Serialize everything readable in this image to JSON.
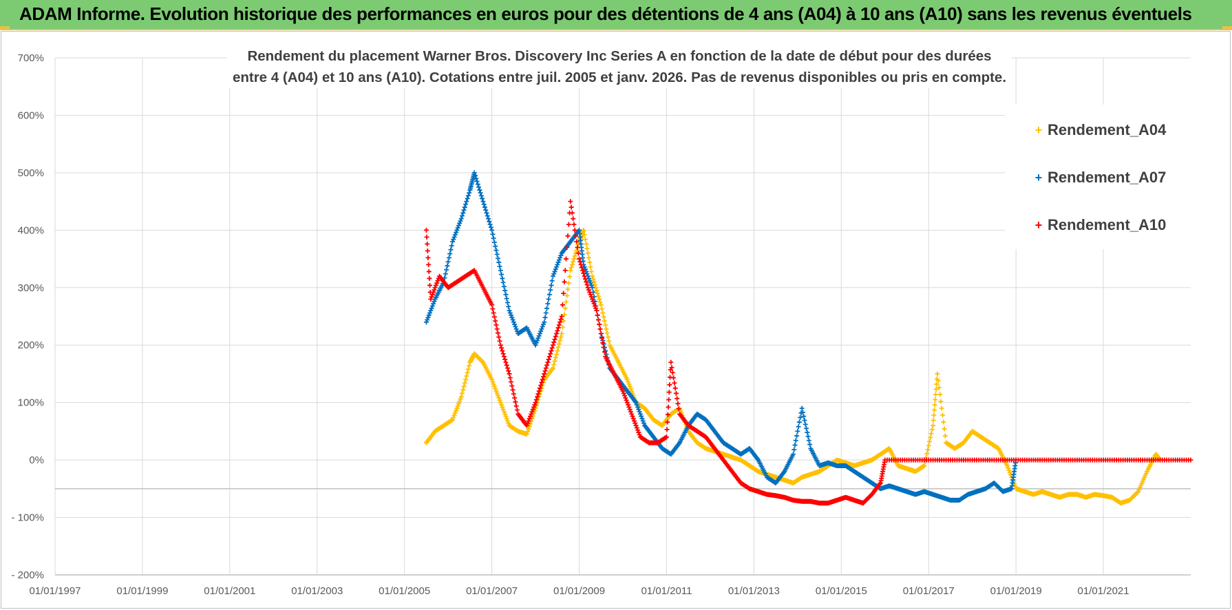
{
  "header": {
    "title": "ADAM Informe. Evolution historique des performances en euros pour des détentions de 4 ans (A04) à 10 ans (A10) sans les revenus éventuels"
  },
  "chart_data": {
    "type": "scatter",
    "title_line1": "Rendement du placement Warner Bros. Discovery Inc Series A en fonction de la date de début pour des durées",
    "title_line2": "entre 4 (A04) et 10 ans (A10). Cotations entre juil. 2005 et janv. 2026. Pas de revenus disponibles ou pris en compte.",
    "xlabel": "",
    "ylabel": "",
    "xlim": [
      1997.0,
      2023.0
    ],
    "ylim": [
      -200,
      700
    ],
    "y_ticks": [
      -200,
      -100,
      0,
      100,
      200,
      300,
      400,
      500,
      600,
      700
    ],
    "y_tick_labels": [
      "- 200%",
      "- 100%",
      "0%",
      "100%",
      "200%",
      "300%",
      "400%",
      "500%",
      "600%",
      "700%"
    ],
    "x_ticks": [
      1997,
      1999,
      2001,
      2003,
      2005,
      2007,
      2009,
      2011,
      2013,
      2015,
      2017,
      2019,
      2021
    ],
    "x_tick_labels": [
      "01/01/1997",
      "01/01/1999",
      "01/01/2001",
      "01/01/2003",
      "01/01/2005",
      "01/01/2007",
      "01/01/2009",
      "01/01/2011",
      "01/01/2013",
      "01/01/2015",
      "01/01/2017",
      "01/01/2019",
      "01/01/2021"
    ],
    "marker": "+",
    "legend_position": "right",
    "series": [
      {
        "name": "Rendement_A04",
        "color": "#ffc000",
        "x": [
          2005.5,
          2005.7,
          2005.9,
          2006.1,
          2006.3,
          2006.5,
          2006.6,
          2006.8,
          2007.0,
          2007.2,
          2007.4,
          2007.6,
          2007.8,
          2008.0,
          2008.2,
          2008.4,
          2008.6,
          2008.8,
          2009.0,
          2009.1,
          2009.3,
          2009.5,
          2009.7,
          2009.9,
          2010.1,
          2010.3,
          2010.5,
          2010.7,
          2010.9,
          2011.1,
          2011.3,
          2011.5,
          2011.7,
          2011.9,
          2012.1,
          2012.3,
          2012.5,
          2012.7,
          2012.9,
          2013.1,
          2013.3,
          2013.5,
          2013.7,
          2013.9,
          2014.1,
          2014.3,
          2014.5,
          2014.7,
          2014.9,
          2015.1,
          2015.3,
          2015.5,
          2015.7,
          2015.9,
          2016.1,
          2016.3,
          2016.5,
          2016.7,
          2016.9,
          2017.1,
          2017.2,
          2017.4,
          2017.6,
          2017.8,
          2018.0,
          2018.2,
          2018.4,
          2018.6,
          2018.8,
          2019.0,
          2019.2,
          2019.4,
          2019.6,
          2019.8,
          2020.0,
          2020.2,
          2020.4,
          2020.6,
          2020.8,
          2021.0,
          2021.2,
          2021.4,
          2021.6,
          2021.8,
          2022.0,
          2022.2,
          2022.3
        ],
        "y": [
          30,
          50,
          60,
          70,
          110,
          170,
          185,
          170,
          140,
          100,
          60,
          50,
          45,
          90,
          140,
          160,
          220,
          330,
          380,
          400,
          320,
          270,
          200,
          170,
          140,
          100,
          90,
          70,
          60,
          80,
          90,
          50,
          30,
          20,
          15,
          10,
          5,
          0,
          -10,
          -20,
          -25,
          -30,
          -35,
          -40,
          -30,
          -25,
          -20,
          -10,
          0,
          -5,
          -10,
          -5,
          0,
          10,
          20,
          -10,
          -15,
          -20,
          -10,
          60,
          150,
          30,
          20,
          30,
          50,
          40,
          30,
          20,
          -10,
          -50,
          -55,
          -60,
          -55,
          -60,
          -65,
          -60,
          -60,
          -65,
          -60,
          -62,
          -65,
          -75,
          -70,
          -55,
          -20,
          10,
          0
        ]
      },
      {
        "name": "Rendement_A07",
        "color": "#0070c0",
        "x": [
          2005.5,
          2005.7,
          2005.9,
          2006.1,
          2006.3,
          2006.5,
          2006.6,
          2006.8,
          2007.0,
          2007.2,
          2007.4,
          2007.6,
          2007.8,
          2008.0,
          2008.2,
          2008.4,
          2008.6,
          2008.8,
          2009.0,
          2009.1,
          2009.3,
          2009.5,
          2009.7,
          2009.9,
          2010.1,
          2010.3,
          2010.5,
          2010.7,
          2010.9,
          2011.1,
          2011.3,
          2011.5,
          2011.7,
          2011.9,
          2012.1,
          2012.3,
          2012.5,
          2012.7,
          2012.9,
          2013.1,
          2013.3,
          2013.5,
          2013.7,
          2013.9,
          2014.1,
          2014.3,
          2014.5,
          2014.7,
          2014.9,
          2015.1,
          2015.3,
          2015.5,
          2015.7,
          2015.9,
          2016.1,
          2016.3,
          2016.5,
          2016.7,
          2016.9,
          2017.1,
          2017.3,
          2017.5,
          2017.7,
          2017.9,
          2018.1,
          2018.3,
          2018.5,
          2018.7,
          2018.9,
          2019.0
        ],
        "y": [
          240,
          280,
          310,
          380,
          420,
          470,
          500,
          450,
          400,
          330,
          260,
          220,
          230,
          200,
          240,
          320,
          360,
          380,
          400,
          340,
          300,
          220,
          160,
          140,
          120,
          100,
          60,
          40,
          20,
          10,
          30,
          60,
          80,
          70,
          50,
          30,
          20,
          10,
          20,
          0,
          -30,
          -40,
          -20,
          10,
          90,
          20,
          -10,
          -5,
          -10,
          -10,
          -20,
          -30,
          -40,
          -50,
          -45,
          -50,
          -55,
          -60,
          -55,
          -60,
          -65,
          -70,
          -70,
          -60,
          -55,
          -50,
          -40,
          -55,
          -50,
          0
        ]
      },
      {
        "name": "Rendement_A10",
        "color": "#ff0000",
        "x": [
          2005.5,
          2005.6,
          2005.8,
          2006.0,
          2006.2,
          2006.4,
          2006.6,
          2006.8,
          2007.0,
          2007.2,
          2007.4,
          2007.6,
          2007.8,
          2008.0,
          2008.2,
          2008.4,
          2008.6,
          2008.8,
          2009.0,
          2009.2,
          2009.4,
          2009.6,
          2009.8,
          2010.0,
          2010.2,
          2010.4,
          2010.6,
          2010.8,
          2011.0,
          2011.1,
          2011.3,
          2011.5,
          2011.7,
          2011.9,
          2012.1,
          2012.3,
          2012.5,
          2012.7,
          2012.9,
          2013.1,
          2013.3,
          2013.5,
          2013.7,
          2013.9,
          2014.1,
          2014.3,
          2014.5,
          2014.7,
          2014.9,
          2015.1,
          2015.3,
          2015.5,
          2015.7,
          2015.9,
          2016.0,
          2016.5,
          2017.0,
          2017.5,
          2018.0,
          2018.5,
          2019.0,
          2019.5,
          2020.0,
          2020.5,
          2021.0,
          2021.5,
          2022.0,
          2022.5,
          2023.0
        ],
        "y": [
          400,
          280,
          320,
          300,
          310,
          320,
          330,
          300,
          270,
          200,
          150,
          80,
          60,
          100,
          150,
          200,
          250,
          450,
          350,
          300,
          260,
          180,
          150,
          120,
          80,
          40,
          30,
          30,
          40,
          170,
          80,
          60,
          50,
          40,
          20,
          0,
          -20,
          -40,
          -50,
          -55,
          -60,
          -62,
          -65,
          -70,
          -72,
          -72,
          -75,
          -75,
          -70,
          -65,
          -70,
          -75,
          -60,
          -40,
          0,
          0,
          0,
          0,
          0,
          0,
          0,
          0,
          0,
          0,
          0,
          0,
          0,
          0,
          0
        ]
      }
    ]
  }
}
